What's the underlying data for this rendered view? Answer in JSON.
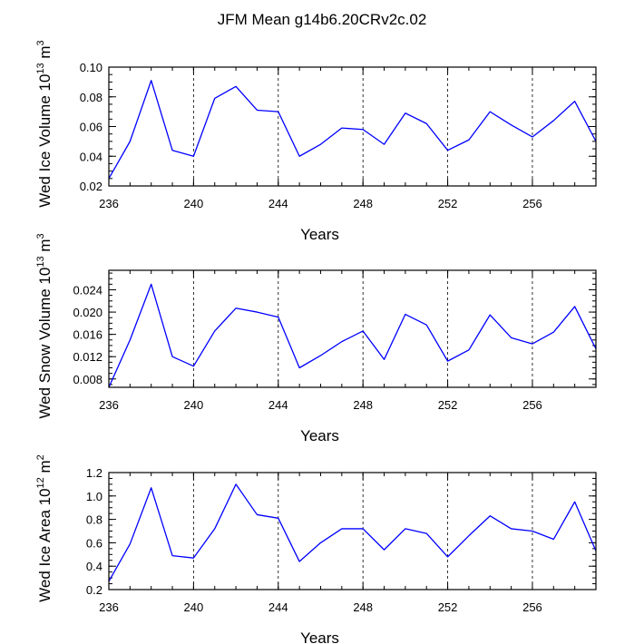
{
  "title": "JFM Mean g14b6.20CRv2c.02",
  "colors": {
    "line": "#0000ff",
    "axis": "#000000",
    "grid": "#000000",
    "background": "#ffffff"
  },
  "chart_data": [
    {
      "type": "line",
      "xlabel": "Years",
      "ylabel": {
        "text": "Wed Ice Volume 10",
        "exponent": "13",
        "unit": " m",
        "unit_exponent": "3"
      },
      "xlim": [
        236,
        259
      ],
      "ylim": [
        0.02,
        0.1
      ],
      "x_ticks": [
        "236",
        "240",
        "244",
        "248",
        "252",
        "256"
      ],
      "y_ticks": [
        "0.02",
        "0.04",
        "0.06",
        "0.08",
        "0.10"
      ],
      "x_minor_step": 1,
      "y_minor_step": 0.005,
      "grid_x": [
        240,
        244,
        248,
        252,
        256
      ],
      "series": [
        {
          "name": "Wed Ice Volume",
          "x": [
            236,
            237,
            238,
            239,
            240,
            241,
            242,
            243,
            244,
            245,
            246,
            247,
            248,
            249,
            250,
            251,
            252,
            253,
            254,
            255,
            256,
            257,
            258,
            259
          ],
          "y": [
            0.025,
            0.05,
            0.091,
            0.044,
            0.04,
            0.079,
            0.087,
            0.071,
            0.07,
            0.04,
            0.048,
            0.059,
            0.058,
            0.048,
            0.069,
            0.062,
            0.044,
            0.051,
            0.07,
            0.061,
            0.053,
            0.064,
            0.077,
            0.05
          ]
        }
      ]
    },
    {
      "type": "line",
      "xlabel": "Years",
      "ylabel": {
        "text": "Wed Snow Volume 10",
        "exponent": "13",
        "unit": " m",
        "unit_exponent": "3"
      },
      "xlim": [
        236,
        259
      ],
      "ylim": [
        0.0065,
        0.0275
      ],
      "x_ticks": [
        "236",
        "240",
        "244",
        "248",
        "252",
        "256"
      ],
      "y_ticks": [
        "0.008",
        "0.012",
        "0.016",
        "0.020",
        "0.024"
      ],
      "x_minor_step": 1,
      "y_minor_step": 0.001,
      "grid_x": [
        240,
        244,
        248,
        252,
        256
      ],
      "series": [
        {
          "name": "Wed Snow Volume",
          "x": [
            236,
            237,
            238,
            239,
            240,
            241,
            242,
            243,
            244,
            245,
            246,
            247,
            248,
            249,
            250,
            251,
            252,
            253,
            254,
            255,
            256,
            257,
            258,
            259
          ],
          "y": [
            0.0065,
            0.015,
            0.025,
            0.012,
            0.0103,
            0.0166,
            0.0207,
            0.02,
            0.0191,
            0.01,
            0.0122,
            0.0147,
            0.0166,
            0.0115,
            0.0196,
            0.0177,
            0.0112,
            0.0132,
            0.0195,
            0.0154,
            0.0143,
            0.0164,
            0.021,
            0.0134
          ]
        }
      ]
    },
    {
      "type": "line",
      "xlabel": "Years",
      "ylabel": {
        "text": "Wed Ice Area 10",
        "exponent": "12",
        "unit": " m",
        "unit_exponent": "2"
      },
      "xlim": [
        236,
        259
      ],
      "ylim": [
        0.2,
        1.2
      ],
      "x_ticks": [
        "236",
        "240",
        "244",
        "248",
        "252",
        "256"
      ],
      "y_ticks": [
        "0.2",
        "0.4",
        "0.6",
        "0.8",
        "1.0",
        "1.2"
      ],
      "x_minor_step": 1,
      "y_minor_step": 0.05,
      "grid_x": [
        240,
        244,
        248,
        252,
        256
      ],
      "series": [
        {
          "name": "Wed Ice Area",
          "x": [
            236,
            237,
            238,
            239,
            240,
            241,
            242,
            243,
            244,
            245,
            246,
            247,
            248,
            249,
            250,
            251,
            252,
            253,
            254,
            255,
            256,
            257,
            258,
            259
          ],
          "y": [
            0.27,
            0.59,
            1.07,
            0.49,
            0.47,
            0.72,
            1.1,
            0.84,
            0.81,
            0.44,
            0.6,
            0.72,
            0.72,
            0.54,
            0.72,
            0.68,
            0.48,
            0.66,
            0.83,
            0.72,
            0.7,
            0.63,
            0.95,
            0.53
          ]
        }
      ]
    }
  ]
}
